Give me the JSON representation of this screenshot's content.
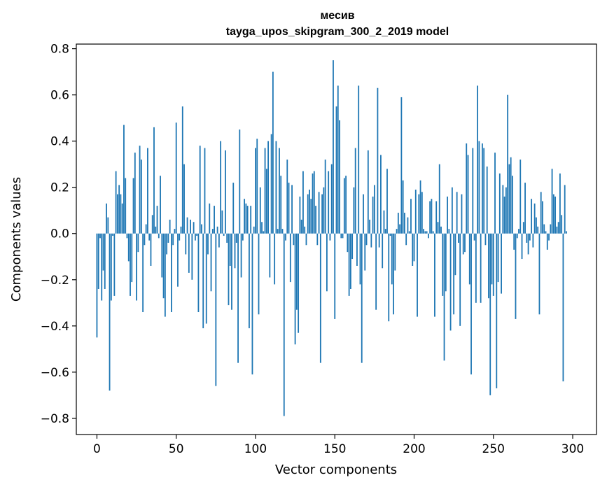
{
  "chart_data": {
    "type": "bar",
    "title": "месив",
    "subtitle": "tayga_upos_skipgram_300_2_2019 model",
    "xlabel": "Vector components",
    "ylabel": "Components values",
    "xlim": [
      -13,
      315
    ],
    "ylim": [
      -0.87,
      0.82
    ],
    "xticks": [
      0,
      50,
      100,
      150,
      200,
      250,
      300
    ],
    "yticks": [
      0.8,
      0.6,
      0.4,
      0.2,
      0.0,
      -0.2,
      -0.4,
      -0.6,
      -0.8
    ],
    "ytick_labels": [
      "0.8",
      "0.6",
      "0.4",
      "0.2",
      "0.0",
      "−0.2",
      "−0.4",
      "−0.6",
      "−0.8"
    ],
    "grid": false,
    "bar_color": "#1f77b4",
    "values": [
      -0.45,
      -0.24,
      -0.02,
      -0.29,
      -0.16,
      -0.24,
      0.13,
      0.07,
      -0.68,
      -0.29,
      -0.01,
      -0.27,
      0.27,
      0.17,
      0.21,
      0.17,
      0.13,
      0.47,
      0.24,
      -0.02,
      -0.12,
      -0.27,
      -0.21,
      0.24,
      0.35,
      -0.29,
      -0.08,
      0.38,
      0.32,
      -0.34,
      -0.05,
      0.04,
      0.37,
      -0.03,
      -0.14,
      0.08,
      0.46,
      0.03,
      0.12,
      -0.02,
      0.25,
      -0.19,
      -0.28,
      -0.36,
      -0.09,
      -0.04,
      0.06,
      -0.34,
      -0.05,
      0.02,
      0.48,
      -0.23,
      -0.03,
      0.03,
      0.55,
      0.3,
      -0.09,
      0.07,
      -0.17,
      0.06,
      -0.2,
      0.05,
      -0.03,
      -0.01,
      -0.34,
      0.38,
      0.04,
      -0.41,
      0.37,
      -0.39,
      -0.09,
      0.13,
      -0.25,
      0.02,
      0.12,
      -0.66,
      0.03,
      -0.06,
      0.4,
      0.1,
      -0.01,
      0.36,
      -0.04,
      -0.31,
      -0.14,
      -0.33,
      0.22,
      -0.15,
      -0.04,
      -0.56,
      0.45,
      -0.19,
      -0.03,
      0.15,
      0.13,
      0.12,
      -0.41,
      0.12,
      -0.61,
      0.03,
      0.37,
      0.41,
      -0.35,
      0.2,
      0.05,
      0.01,
      0.37,
      0.28,
      0.4,
      -0.19,
      0.43,
      0.7,
      -0.22,
      0.4,
      0.02,
      0.37,
      0.25,
      0.02,
      -0.79,
      -0.03,
      0.32,
      0.22,
      -0.21,
      0.21,
      -0.05,
      -0.48,
      -0.33,
      -0.43,
      0.16,
      0.06,
      0.27,
      0.03,
      -0.05,
      0.17,
      0.19,
      0.15,
      0.26,
      0.27,
      0.12,
      -0.05,
      0.18,
      -0.56,
      0.17,
      0.2,
      0.32,
      -0.25,
      0.27,
      -0.03,
      0.3,
      0.75,
      -0.37,
      0.55,
      0.64,
      0.49,
      -0.02,
      -0.02,
      0.24,
      0.25,
      -0.08,
      -0.27,
      -0.24,
      -0.11,
      0.2,
      0.37,
      -0.14,
      0.64,
      -0.22,
      -0.56,
      0.17,
      -0.16,
      -0.05,
      0.36,
      0.06,
      -0.06,
      0.16,
      0.21,
      -0.33,
      0.63,
      -0.06,
      0.34,
      -0.15,
      0.1,
      0.02,
      0.28,
      -0.38,
      -0.01,
      -0.22,
      -0.35,
      -0.16,
      0.02,
      0.09,
      0.04,
      0.59,
      0.23,
      0.09,
      -0.05,
      0.07,
      0.01,
      0.15,
      -0.14,
      -0.12,
      0.19,
      -0.36,
      0.17,
      0.23,
      0.18,
      0.02,
      0.01,
      0.01,
      -0.02,
      0.14,
      0.15,
      0.01,
      -0.36,
      0.14,
      0.05,
      0.3,
      0.03,
      -0.27,
      -0.55,
      -0.25,
      0.16,
      0.02,
      -0.42,
      0.2,
      -0.35,
      -0.18,
      0.18,
      -0.04,
      -0.4,
      0.17,
      -0.09,
      -0.08,
      0.39,
      0.34,
      -0.22,
      -0.61,
      0.37,
      -0.03,
      -0.3,
      0.64,
      0.4,
      -0.3,
      0.39,
      0.37,
      -0.05,
      0.29,
      -0.28,
      -0.7,
      -0.22,
      -0.27,
      0.35,
      -0.67,
      -0.21,
      0.26,
      -0.26,
      0.21,
      0.16,
      0.2,
      0.6,
      0.3,
      0.33,
      0.25,
      -0.07,
      -0.37,
      -0.02,
      0.02,
      0.32,
      -0.11,
      0.05,
      0.22,
      -0.04,
      -0.09,
      -0.03,
      0.15,
      -0.06,
      0.13,
      0.07,
      0.03,
      -0.35,
      0.18,
      0.14,
      0.04,
      0.01,
      -0.07,
      -0.03,
      0.04,
      0.28,
      0.17,
      0.16,
      0.03,
      0.05,
      0.26,
      0.08,
      -0.64,
      0.21,
      0.01
    ]
  }
}
